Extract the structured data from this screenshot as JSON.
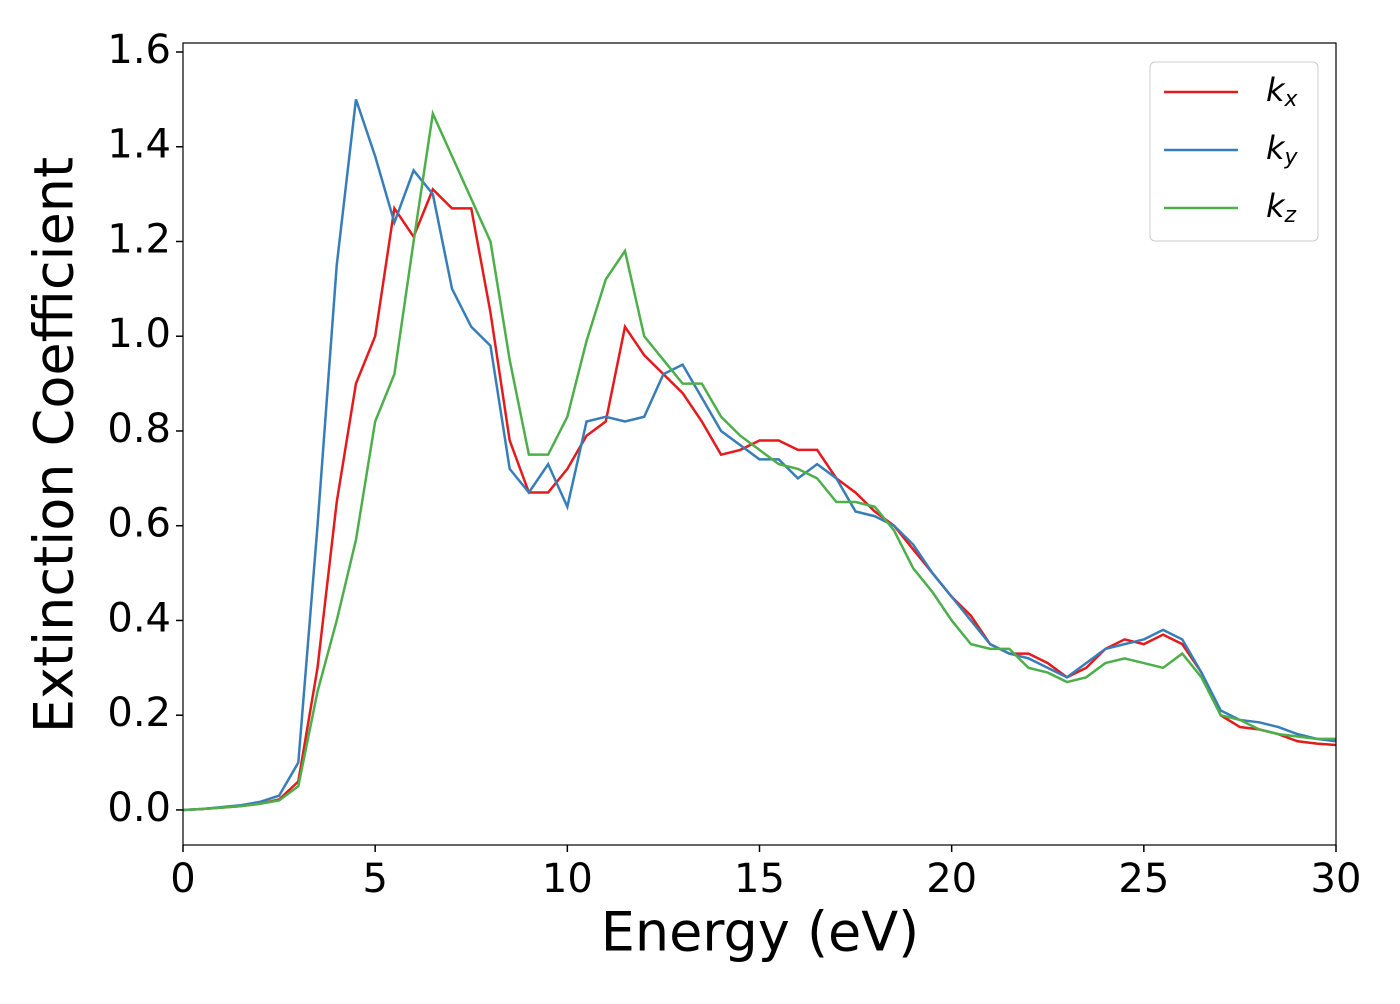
{
  "chart_data": {
    "type": "line",
    "xlabel": "Energy (eV)",
    "ylabel": "Extinction Coefficient",
    "x": [
      0,
      0.5,
      1,
      1.5,
      2,
      2.5,
      3,
      3.5,
      4,
      4.5,
      5,
      5.5,
      6,
      6.5,
      7,
      7.5,
      8,
      8.5,
      9,
      9.5,
      10,
      10.5,
      11,
      11.5,
      12,
      12.5,
      13,
      13.5,
      14,
      14.5,
      15,
      15.5,
      16,
      16.5,
      17,
      17.5,
      18,
      18.5,
      19,
      19.5,
      20,
      20.5,
      21,
      21.5,
      22,
      22.5,
      23,
      23.5,
      24,
      24.5,
      25,
      25.5,
      26,
      26.5,
      27,
      27.5,
      28,
      28.5,
      29,
      29.5,
      30
    ],
    "series": [
      {
        "name": "kx",
        "color": "#e41a1c",
        "values": [
          0,
          0.002,
          0.005,
          0.008,
          0.013,
          0.022,
          0.06,
          0.3,
          0.65,
          0.9,
          1.0,
          1.27,
          1.21,
          1.31,
          1.27,
          1.27,
          1.05,
          0.78,
          0.67,
          0.67,
          0.72,
          0.79,
          0.82,
          1.02,
          0.96,
          0.92,
          0.88,
          0.82,
          0.75,
          0.76,
          0.78,
          0.78,
          0.76,
          0.76,
          0.7,
          0.67,
          0.63,
          0.6,
          0.55,
          0.5,
          0.45,
          0.41,
          0.35,
          0.33,
          0.33,
          0.31,
          0.28,
          0.3,
          0.34,
          0.36,
          0.35,
          0.37,
          0.35,
          0.29,
          0.2,
          0.175,
          0.17,
          0.16,
          0.145,
          0.14,
          0.137
        ]
      },
      {
        "name": "ky",
        "color": "#377eb8",
        "values": [
          0,
          0.002,
          0.006,
          0.01,
          0.017,
          0.03,
          0.1,
          0.6,
          1.15,
          1.5,
          1.38,
          1.24,
          1.35,
          1.3,
          1.1,
          1.02,
          0.98,
          0.72,
          0.67,
          0.73,
          0.64,
          0.82,
          0.83,
          0.82,
          0.83,
          0.92,
          0.94,
          0.87,
          0.8,
          0.77,
          0.74,
          0.74,
          0.7,
          0.73,
          0.7,
          0.63,
          0.62,
          0.6,
          0.56,
          0.5,
          0.45,
          0.4,
          0.35,
          0.33,
          0.32,
          0.3,
          0.28,
          0.31,
          0.34,
          0.35,
          0.36,
          0.38,
          0.36,
          0.29,
          0.21,
          0.19,
          0.185,
          0.175,
          0.16,
          0.15,
          0.145
        ]
      },
      {
        "name": "kz",
        "color": "#4daf4a",
        "values": [
          0,
          0.002,
          0.005,
          0.008,
          0.013,
          0.02,
          0.05,
          0.25,
          0.4,
          0.57,
          0.82,
          0.92,
          1.2,
          1.47,
          1.38,
          1.29,
          1.2,
          0.95,
          0.75,
          0.75,
          0.83,
          0.99,
          1.12,
          1.18,
          1.0,
          0.95,
          0.9,
          0.9,
          0.83,
          0.79,
          0.76,
          0.73,
          0.72,
          0.7,
          0.65,
          0.65,
          0.64,
          0.59,
          0.51,
          0.46,
          0.4,
          0.35,
          0.34,
          0.34,
          0.3,
          0.29,
          0.27,
          0.28,
          0.31,
          0.32,
          0.31,
          0.3,
          0.33,
          0.28,
          0.2,
          0.19,
          0.17,
          0.16,
          0.155,
          0.15,
          0.15
        ]
      }
    ],
    "xlim": [
      0,
      30
    ],
    "xticks": [
      0,
      5,
      10,
      15,
      20,
      25,
      30
    ],
    "ylim": [
      -0.074,
      1.619
    ],
    "yticks": [
      {
        "value": 0,
        "label": "0.0"
      },
      0.2,
      0.4,
      0.6,
      0.8,
      {
        "value": 1,
        "label": "1.0"
      },
      1.2,
      1.4,
      1.6
    ],
    "grid": false,
    "legend": "upper right"
  }
}
